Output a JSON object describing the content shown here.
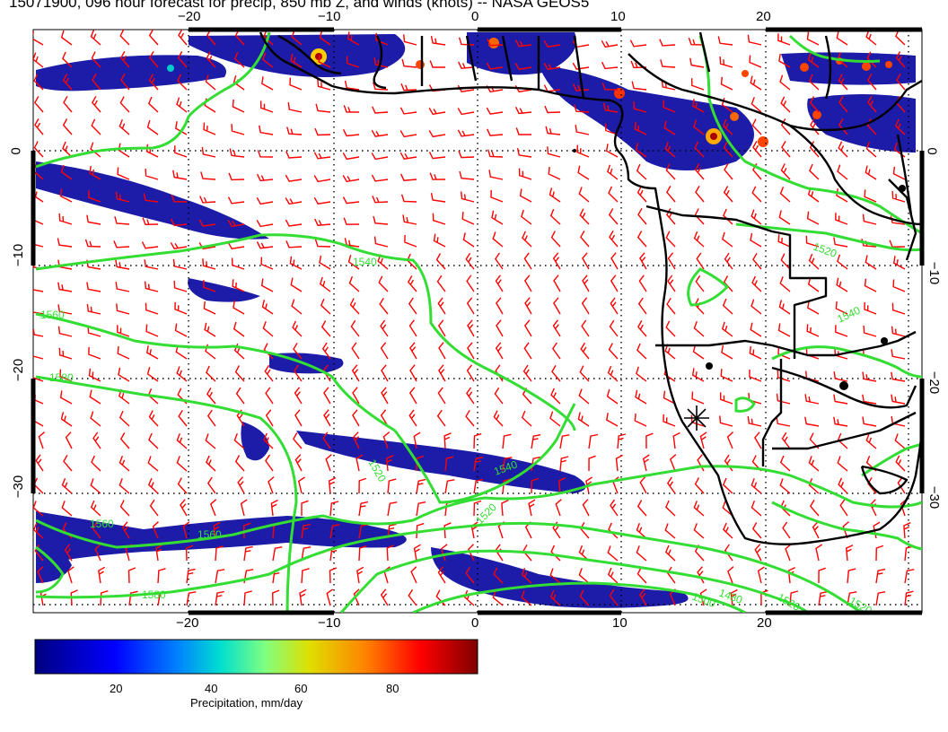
{
  "title": "15071900, 096 hour forecast for precip, 850 mb Z, and winds (knots) -- NASA GEOS5",
  "map": {
    "lon_ticks": [
      "−20",
      "−10",
      "0",
      "10",
      "20"
    ],
    "lat_ticks": [
      "0",
      "−10",
      "−20",
      "−30"
    ],
    "contour_labels": [
      "1520",
      "1540",
      "1560",
      "1580",
      "1500",
      "1480"
    ],
    "colors": {
      "precip_low": "#1a1aa0",
      "precip_high": "#8b0000",
      "contours": "#33dd33",
      "wind_barbs": "#ff0000",
      "coastline": "#000000"
    },
    "marker": "star-marker"
  },
  "colorbar": {
    "ticks": [
      "20",
      "40",
      "60",
      "80"
    ],
    "title": "Precipitation, mm/day",
    "gradient": [
      "#00007f",
      "#0000ff",
      "#0080ff",
      "#00dfd0",
      "#80ff80",
      "#dfdf00",
      "#ff8000",
      "#ff0000",
      "#7f0000"
    ]
  }
}
